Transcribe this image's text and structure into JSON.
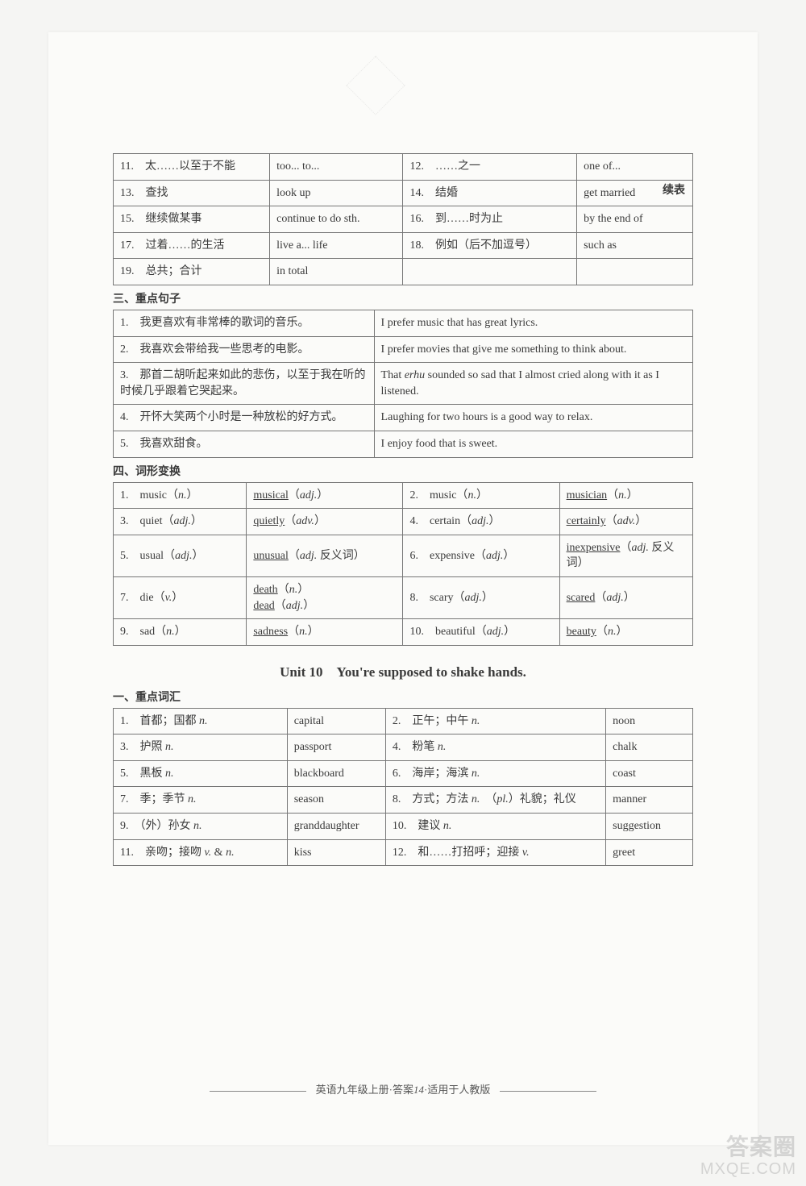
{
  "continued_label": "续表",
  "table1": {
    "rows": [
      [
        "11.　太……以至于不能",
        "too... to...",
        "12.　……之一",
        "one of..."
      ],
      [
        "13.　查找",
        "look up",
        "14.　结婚",
        "get married"
      ],
      [
        "15.　继续做某事",
        "continue to do sth.",
        "16.　到……时为止",
        "by the end of"
      ],
      [
        "17.　过着……的生活",
        "live a... life",
        "18.　例如（后不加逗号）",
        "such as"
      ],
      [
        "19.　总共；合计",
        "in total",
        "",
        ""
      ]
    ]
  },
  "section3": {
    "title": "三、重点句子",
    "rows": [
      [
        "1.　我更喜欢有非常棒的歌词的音乐。",
        "I prefer music that has great lyrics."
      ],
      [
        "2.　我喜欢会带给我一些思考的电影。",
        "I prefer movies that give me something to think about."
      ],
      [
        "3.　那首二胡听起来如此的悲伤，以至于我在听的时候几乎跟着它哭起来。",
        "That <i>erhu</i> sounded so sad that I almost cried along with it as I listened."
      ],
      [
        "4.　开怀大笑两个小时是一种放松的好方式。",
        "Laughing for two hours is a good way to relax."
      ],
      [
        "5.　我喜欢甜食。",
        "I enjoy food that is sweet."
      ]
    ]
  },
  "section4": {
    "title": "四、词形变换",
    "rows": [
      [
        "1.　music（<i>n.</i>）",
        "<u>musical</u>（<i>adj.</i>）",
        "2.　music（<i>n.</i>）",
        "<u>musician</u>（<i>n.</i>）"
      ],
      [
        "3.　quiet（<i>adj.</i>）",
        "<u>quietly</u>（<i>adv.</i>）",
        "4.　certain（<i>adj.</i>）",
        "<u>certainly</u>（<i>adv.</i>）"
      ],
      [
        "5.　usual（<i>adj.</i>）",
        "<u>unusual</u>（<i>adj.</i> 反义词）",
        "6.　expensive（<i>adj.</i>）",
        "<u>inexpensive</u>（<i>adj.</i> 反义词）"
      ],
      [
        "7.　die（<i>v.</i>）",
        "<u>death</u>（<i>n.</i>）<br><u>dead</u>（<i>adj.</i>）",
        "8.　scary（<i>adj.</i>）",
        "<u>scared</u>（<i>adj.</i>）"
      ],
      [
        "9.　sad（<i>n.</i>）",
        "<u>sadness</u>（<i>n.</i>）",
        "10.　beautiful（<i>adj.</i>）",
        "<u>beauty</u>（<i>n.</i>）"
      ]
    ]
  },
  "unit_title": "Unit 10　You're supposed to shake hands.",
  "section_vocab": {
    "title": "一、重点词汇",
    "rows": [
      [
        "1.　首都；国都 <i>n.</i>",
        "capital",
        "2.　正午；中午 <i>n.</i>",
        "noon"
      ],
      [
        "3.　护照 <i>n.</i>",
        "passport",
        "4.　粉笔 <i>n.</i>",
        "chalk"
      ],
      [
        "5.　黑板 <i>n.</i>",
        "blackboard",
        "6.　海岸；海滨 <i>n.</i>",
        "coast"
      ],
      [
        "7.　季；季节 <i>n.</i>",
        "season",
        "8.　方式；方法 <i>n.</i>　（<i>pl.</i>）礼貌；礼仪",
        "manner"
      ],
      [
        "9.　（外）孙女 <i>n.</i>",
        "granddaughter",
        "10.　建议 <i>n.</i>",
        "suggestion"
      ],
      [
        "11.　亲吻；接吻 <i>v.</i> & <i>n.</i>",
        "kiss",
        "12.　和……打招呼；迎接 <i>v.</i>",
        "greet"
      ]
    ]
  },
  "footer_text": "英语九年级上册·答案<i>14</i>·适用于人教版",
  "watermark": {
    "line1": "答案圈",
    "line2": "MXQE.COM"
  },
  "colwidths": {
    "t1": [
      "27%",
      "23%",
      "30%",
      "20%"
    ],
    "t3": [
      "45%",
      "55%"
    ],
    "t4": [
      "23%",
      "27%",
      "27%",
      "23%"
    ],
    "tv": [
      "30%",
      "17%",
      "38%",
      "15%"
    ]
  }
}
